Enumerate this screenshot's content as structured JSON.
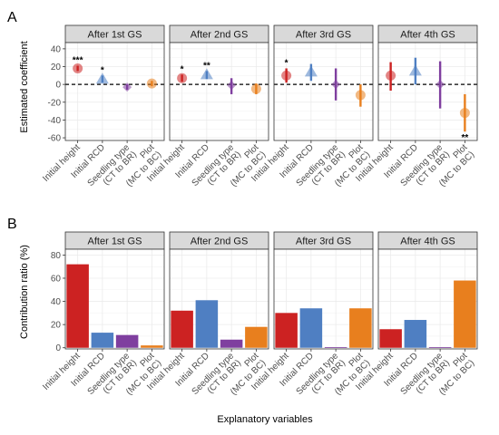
{
  "figure": {
    "panel_letters": [
      "A",
      "B"
    ],
    "shared_xlabel": "Explanatory variables"
  },
  "colors": {
    "Initial height": "#cc2222",
    "Initial RCD": "#4f7fc2",
    "Seedling type": "#7f3f9f",
    "Plot": "#e87f1e"
  },
  "chart_data": [
    {
      "panel": "A",
      "type": "scatter",
      "subtype": "coefficient plot with error bars",
      "ylabel": "Estimated coefficient",
      "ylim": [
        -63,
        47
      ],
      "yticks": [
        -60,
        -40,
        -20,
        0,
        20,
        40
      ],
      "reference_line": 0,
      "facets": [
        "After 1st GS",
        "After 2nd GS",
        "After 3rd GS",
        "After 4th GS"
      ],
      "categories": [
        "Initial height",
        "Initial RCD",
        "Seedling type\n(CT to BR)",
        "Plot\n(MC to BC)"
      ],
      "series": [
        {
          "name": "Initial height",
          "shape": "circle",
          "values": [
            18,
            7,
            10,
            10
          ],
          "lower": [
            15,
            3,
            2,
            -7
          ],
          "upper": [
            21,
            11,
            18,
            25
          ],
          "significance": [
            "***",
            "*",
            "*",
            ""
          ]
        },
        {
          "name": "Initial RCD",
          "shape": "triangle",
          "values": [
            6,
            11,
            14,
            15
          ],
          "lower": [
            2,
            6,
            4,
            0
          ],
          "upper": [
            10,
            15,
            23,
            30
          ],
          "significance": [
            "*",
            "**",
            "",
            ""
          ]
        },
        {
          "name": "Seedling type",
          "shape": "diamond",
          "values": [
            -3,
            -1,
            0,
            0
          ],
          "lower": [
            -6,
            -11,
            -18,
            -27
          ],
          "upper": [
            0,
            7,
            18,
            26
          ],
          "significance": [
            "",
            "",
            "",
            ""
          ]
        },
        {
          "name": "Plot",
          "shape": "circle",
          "values": [
            1,
            -5,
            -12,
            -32
          ],
          "lower": [
            -2,
            -11,
            -25,
            -53
          ],
          "upper": [
            4,
            1,
            0,
            -11
          ],
          "significance": [
            "",
            "",
            "",
            "**"
          ]
        }
      ]
    },
    {
      "panel": "B",
      "type": "bar",
      "ylabel": "Contribution ratio (%)",
      "ylim": [
        -1,
        85
      ],
      "yticks": [
        0,
        20,
        40,
        60,
        80
      ],
      "facets": [
        "After 1st GS",
        "After 2nd GS",
        "After 3rd GS",
        "After 4th GS"
      ],
      "categories": [
        "Initial height",
        "Initial RCD",
        "Seedling type\n(CT to BR)",
        "Plot\n(MC to BC)"
      ],
      "series": [
        {
          "name": "Initial height",
          "values": [
            72,
            32,
            30,
            16
          ]
        },
        {
          "name": "Initial RCD",
          "values": [
            13,
            41,
            34,
            24
          ]
        },
        {
          "name": "Seedling type",
          "values": [
            11,
            7,
            0.5,
            0.5
          ]
        },
        {
          "name": "Plot",
          "values": [
            2,
            18,
            34,
            58
          ]
        }
      ]
    }
  ]
}
